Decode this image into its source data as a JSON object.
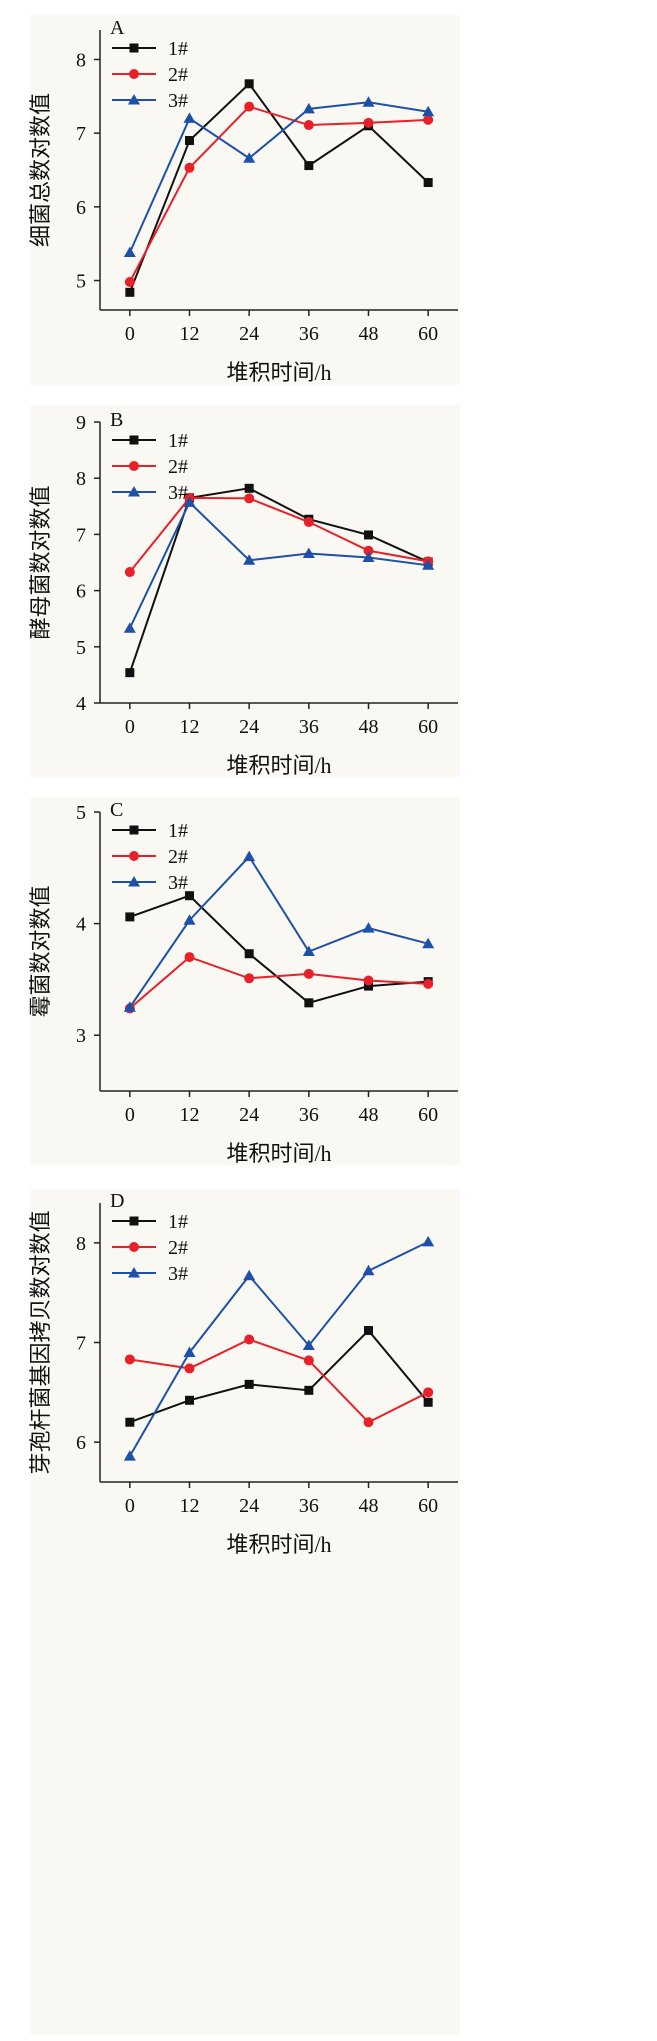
{
  "chart_data": [
    {
      "type": "line",
      "panel": "A",
      "xlabel": "堆积时间/h",
      "ylabel": "细菌总数对数值",
      "x": [
        0,
        12,
        24,
        36,
        48,
        60
      ],
      "xlim": [
        -6,
        66
      ],
      "ylim": [
        4.6,
        8.4
      ],
      "yticks": [
        5,
        6,
        7,
        8
      ],
      "series": [
        {
          "name": "1#",
          "color": "#111111",
          "marker": "square",
          "values": [
            4.84,
            6.9,
            7.67,
            6.56,
            7.1,
            6.33
          ]
        },
        {
          "name": "2#",
          "color": "#e8202a",
          "marker": "circle",
          "values": [
            4.98,
            6.53,
            7.36,
            7.11,
            7.14,
            7.18
          ]
        },
        {
          "name": "3#",
          "color": "#1f50a8",
          "marker": "triangle",
          "values": [
            5.38,
            7.2,
            6.66,
            7.33,
            7.42,
            7.29
          ]
        }
      ]
    },
    {
      "type": "line",
      "panel": "B",
      "xlabel": "堆积时间/h",
      "ylabel": "酵母菌数对数值",
      "x": [
        0,
        12,
        24,
        36,
        48,
        60
      ],
      "xlim": [
        -6,
        66
      ],
      "ylim": [
        4,
        9
      ],
      "yticks": [
        4,
        5,
        6,
        7,
        8,
        9
      ],
      "series": [
        {
          "name": "1#",
          "color": "#111111",
          "marker": "square",
          "values": [
            4.54,
            7.65,
            7.82,
            7.27,
            6.99,
            6.51
          ]
        },
        {
          "name": "2#",
          "color": "#e8202a",
          "marker": "circle",
          "values": [
            6.33,
            7.65,
            7.64,
            7.22,
            6.71,
            6.52
          ]
        },
        {
          "name": "3#",
          "color": "#1f50a8",
          "marker": "triangle",
          "values": [
            5.33,
            7.57,
            6.54,
            6.66,
            6.59,
            6.45
          ]
        }
      ]
    },
    {
      "type": "line",
      "panel": "C",
      "xlabel": "堆积时间/h",
      "ylabel": "霉菌数对数值",
      "x": [
        0,
        12,
        24,
        36,
        48,
        60
      ],
      "xlim": [
        -6,
        66
      ],
      "ylim": [
        2.5,
        5
      ],
      "yticks": [
        3,
        4,
        5
      ],
      "series": [
        {
          "name": "1#",
          "color": "#111111",
          "marker": "square",
          "values": [
            4.06,
            4.25,
            3.73,
            3.29,
            3.44,
            3.48
          ]
        },
        {
          "name": "2#",
          "color": "#e8202a",
          "marker": "circle",
          "values": [
            3.24,
            3.7,
            3.51,
            3.55,
            3.49,
            3.46
          ]
        },
        {
          "name": "3#",
          "color": "#1f50a8",
          "marker": "triangle",
          "values": [
            3.25,
            4.03,
            4.6,
            3.75,
            3.96,
            3.82
          ]
        }
      ]
    },
    {
      "type": "line",
      "panel": "D",
      "xlabel": "堆积时间/h",
      "ylabel": "芽孢杆菌基因拷贝数对数值",
      "x": [
        0,
        12,
        24,
        36,
        48,
        60
      ],
      "xlim": [
        -6,
        66
      ],
      "ylim": [
        5.6,
        8.4
      ],
      "yticks": [
        6,
        7,
        8
      ],
      "series": [
        {
          "name": "1#",
          "color": "#111111",
          "marker": "square",
          "values": [
            6.2,
            6.42,
            6.58,
            6.52,
            7.12,
            6.4
          ]
        },
        {
          "name": "2#",
          "color": "#e8202a",
          "marker": "circle",
          "values": [
            6.83,
            6.74,
            7.03,
            6.82,
            6.2,
            6.5
          ]
        },
        {
          "name": "3#",
          "color": "#1f50a8",
          "marker": "triangle",
          "values": [
            5.86,
            6.9,
            7.67,
            6.97,
            7.72,
            8.01
          ]
        }
      ]
    }
  ]
}
